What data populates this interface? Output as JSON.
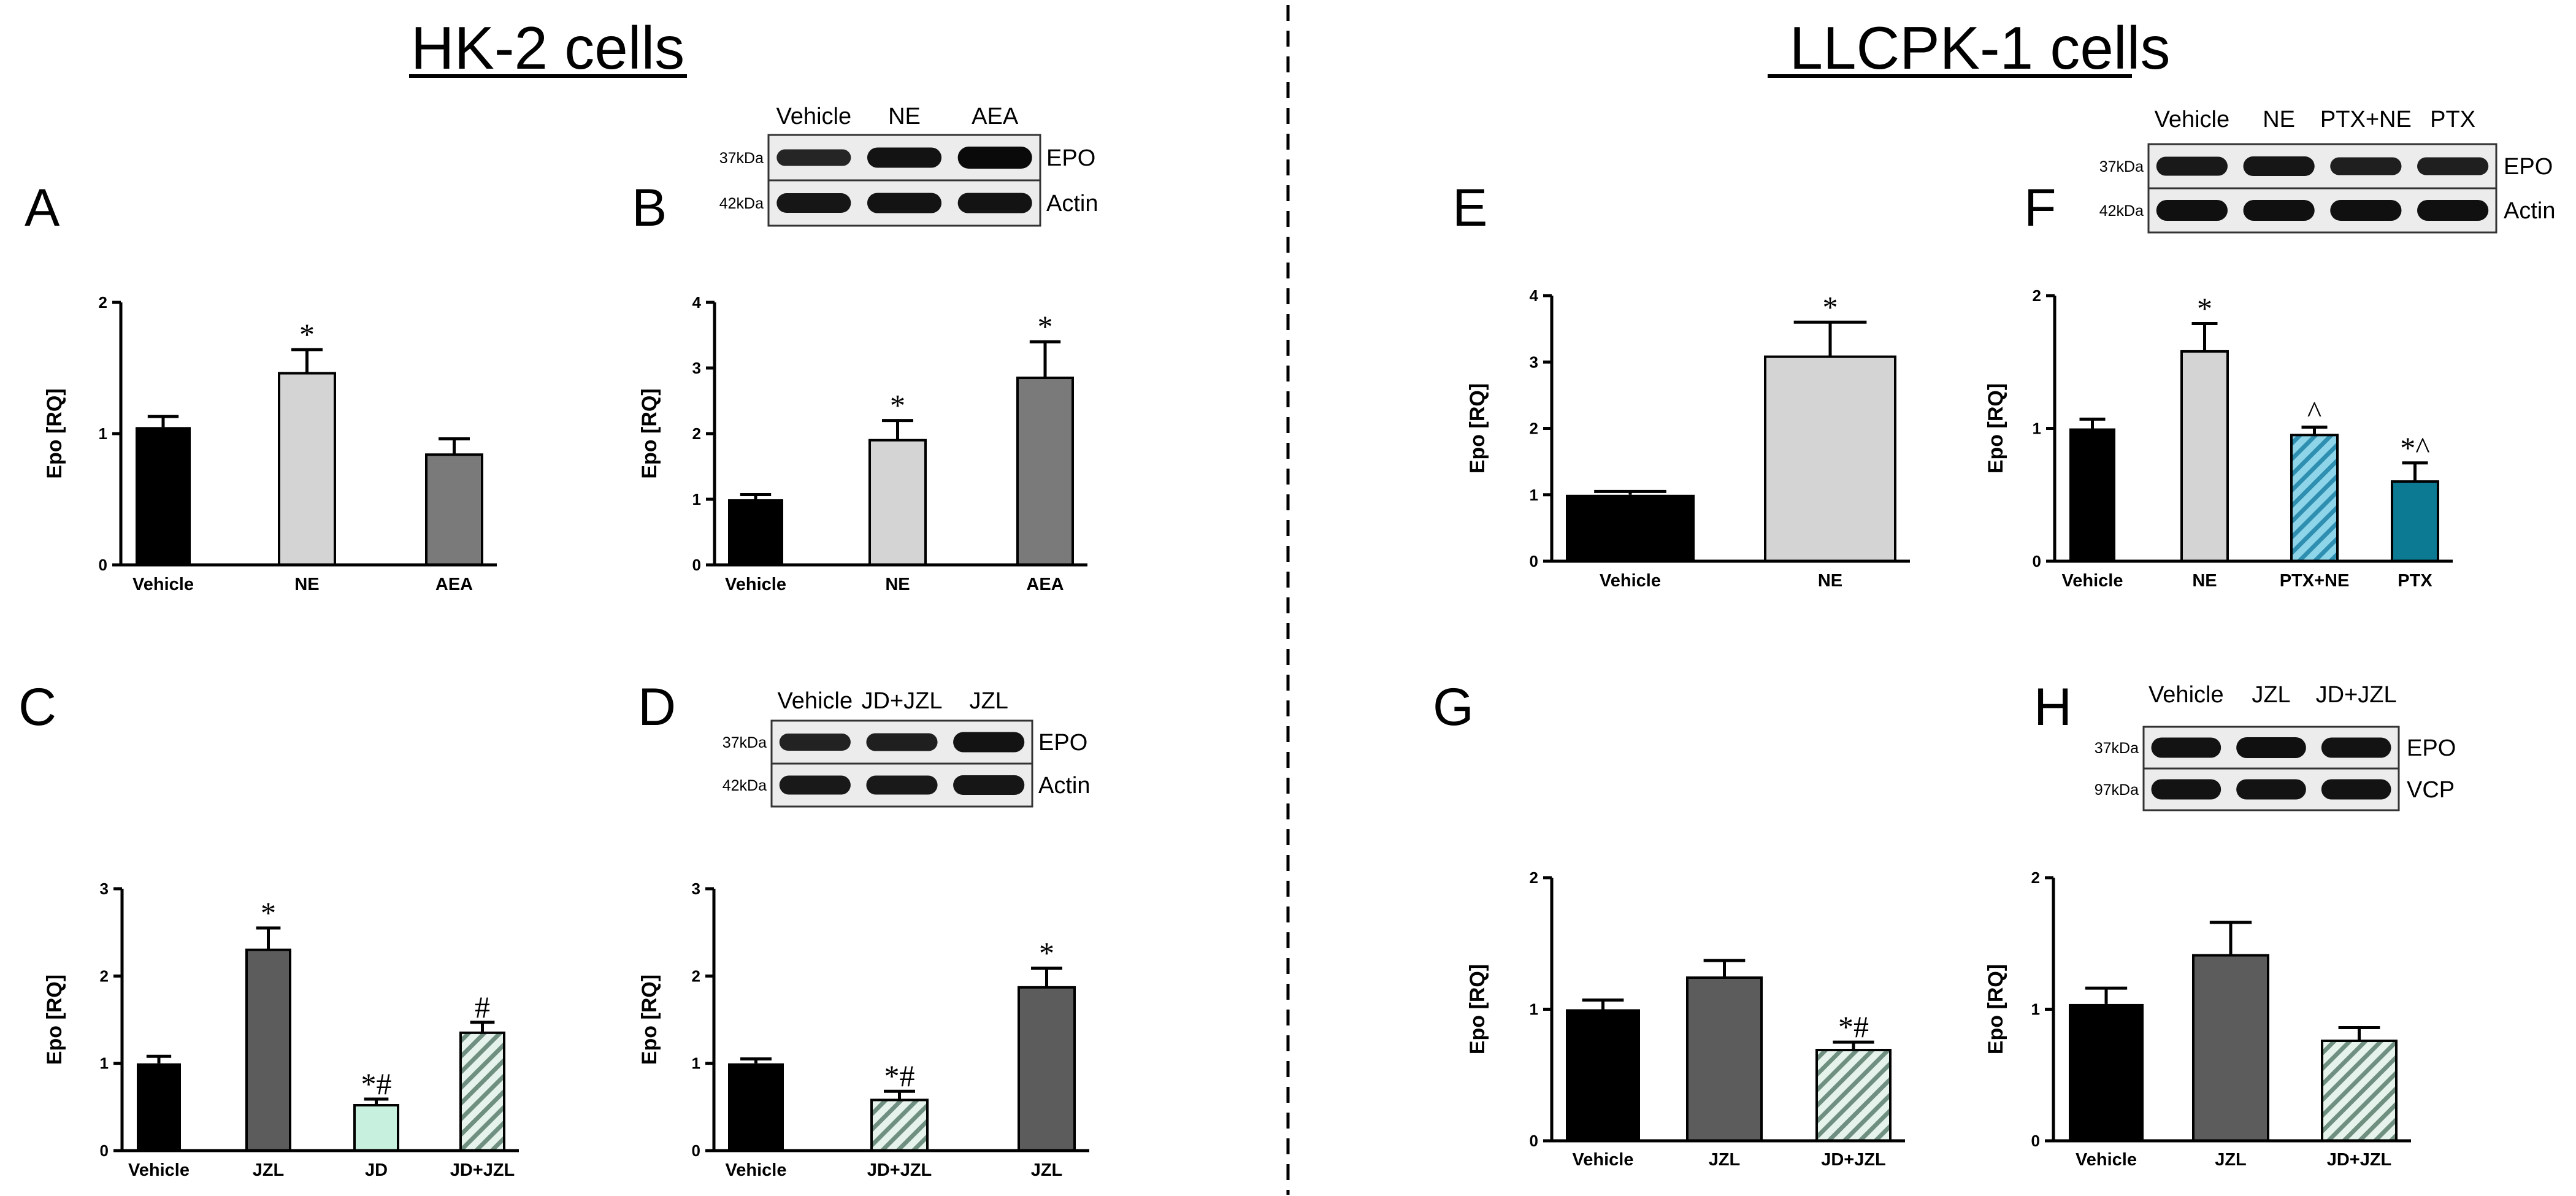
{
  "headings": {
    "left": "HK-2 cells",
    "right": "LLCPK-1 cells"
  },
  "colors": {
    "black": "#000000",
    "light_gray": "#d4d4d4",
    "mid_gray": "#7a7a7a",
    "dark_gray": "#5c5c5c",
    "mint": "#c8f0de",
    "teal": "#0d7a94",
    "hatch_teal_bg": "#8fd5ea",
    "hatch_teal_line": "#2e8fb0",
    "hatch_gray_bg": "#e6f2ec",
    "hatch_gray_line": "#6f8f80"
  },
  "blots": [
    {
      "panel": "B",
      "lanes": [
        "Vehicle",
        "NE",
        "AEA"
      ],
      "rows": [
        {
          "mw": "37kDa",
          "protein": "EPO",
          "intensity": [
            0.55,
            0.85,
            1.0
          ]
        },
        {
          "mw": "42kDa",
          "protein": "Actin",
          "intensity": [
            0.8,
            0.85,
            0.85
          ]
        }
      ]
    },
    {
      "panel": "D",
      "lanes": [
        "Vehicle",
        "JD+JZL",
        "JZL"
      ],
      "rows": [
        {
          "mw": "37kDa",
          "protein": "EPO",
          "intensity": [
            0.6,
            0.65,
            0.85
          ]
        },
        {
          "mw": "42kDa",
          "protein": "Actin",
          "intensity": [
            0.75,
            0.75,
            0.8
          ]
        }
      ]
    },
    {
      "panel": "F",
      "lanes": [
        "Vehicle",
        "NE",
        "PTX+NE",
        "PTX"
      ],
      "rows": [
        {
          "mw": "37kDa",
          "protein": "EPO",
          "intensity": [
            0.75,
            0.8,
            0.65,
            0.65
          ]
        },
        {
          "mw": "42kDa",
          "protein": "Actin",
          "intensity": [
            0.9,
            0.9,
            0.9,
            0.9
          ]
        }
      ]
    },
    {
      "panel": "H",
      "lanes": [
        "Vehicle",
        "JZL",
        "JD+JZL"
      ],
      "rows": [
        {
          "mw": "37kDa",
          "protein": "EPO",
          "intensity": [
            0.85,
            0.9,
            0.85
          ]
        },
        {
          "mw": "97kDa",
          "protein": "VCP",
          "intensity": [
            0.85,
            0.85,
            0.85
          ]
        }
      ]
    }
  ],
  "chart_data": [
    {
      "panel": "A",
      "type": "bar",
      "ylabel": "Epo [RQ]",
      "ylim": [
        0,
        2
      ],
      "yticks": [
        0,
        1,
        2
      ],
      "categories": [
        "Vehicle",
        "NE",
        "AEA"
      ],
      "values": [
        1.05,
        1.46,
        0.84
      ],
      "errors": [
        0.08,
        0.18,
        0.12
      ],
      "fills": [
        "black",
        "light_gray",
        "mid_gray"
      ],
      "annotations": [
        "",
        "*",
        ""
      ]
    },
    {
      "panel": "B",
      "type": "bar",
      "ylabel": "Epo [RQ]",
      "ylim": [
        0,
        4
      ],
      "yticks": [
        0,
        1,
        2,
        3,
        4
      ],
      "categories": [
        "Vehicle",
        "NE",
        "AEA"
      ],
      "values": [
        1.0,
        1.9,
        2.85
      ],
      "errors": [
        0.07,
        0.3,
        0.55
      ],
      "fills": [
        "black",
        "light_gray",
        "mid_gray"
      ],
      "annotations": [
        "",
        "*",
        "*"
      ]
    },
    {
      "panel": "C",
      "type": "bar",
      "ylabel": "Epo [RQ]",
      "ylim": [
        0,
        3
      ],
      "yticks": [
        0,
        1,
        2,
        3
      ],
      "categories": [
        "Vehicle",
        "JZL",
        "JD",
        "JD+JZL"
      ],
      "values": [
        1.0,
        2.3,
        0.52,
        1.35
      ],
      "errors": [
        0.08,
        0.25,
        0.07,
        0.12
      ],
      "fills": [
        "black",
        "dark_gray",
        "mint",
        "hatch_gray"
      ],
      "annotations": [
        "",
        "*",
        "*#",
        "#"
      ]
    },
    {
      "panel": "D",
      "type": "bar",
      "ylabel": "Epo [RQ]",
      "ylim": [
        0,
        3
      ],
      "yticks": [
        0,
        1,
        2,
        3
      ],
      "categories": [
        "Vehicle",
        "JD+JZL",
        "JZL"
      ],
      "values": [
        1.0,
        0.58,
        1.87
      ],
      "errors": [
        0.05,
        0.1,
        0.22
      ],
      "fills": [
        "black",
        "hatch_gray",
        "dark_gray"
      ],
      "annotations": [
        "",
        "*#",
        "*"
      ]
    },
    {
      "panel": "E",
      "type": "bar",
      "ylabel": "Epo [RQ]",
      "ylim": [
        0,
        4
      ],
      "yticks": [
        0,
        1,
        2,
        3,
        4
      ],
      "categories": [
        "Vehicle",
        "NE"
      ],
      "values": [
        1.0,
        3.08
      ],
      "errors": [
        0.05,
        0.52
      ],
      "fills": [
        "black",
        "light_gray"
      ],
      "annotations": [
        "",
        "*"
      ]
    },
    {
      "panel": "F",
      "type": "bar",
      "ylabel": "Epo [RQ]",
      "ylim": [
        0,
        2
      ],
      "yticks": [
        0,
        1,
        2
      ],
      "categories": [
        "Vehicle",
        "NE",
        "PTX+NE",
        "PTX"
      ],
      "values": [
        1.0,
        1.58,
        0.95,
        0.6
      ],
      "errors": [
        0.07,
        0.21,
        0.06,
        0.14
      ],
      "fills": [
        "black",
        "light_gray",
        "hatch_teal",
        "teal"
      ],
      "annotations": [
        "",
        "*",
        "^",
        "*^"
      ]
    },
    {
      "panel": "G",
      "type": "bar",
      "ylabel": "Epo [RQ]",
      "ylim": [
        0,
        2
      ],
      "yticks": [
        0,
        1,
        2
      ],
      "categories": [
        "Vehicle",
        "JZL",
        "JD+JZL"
      ],
      "values": [
        1.0,
        1.24,
        0.69
      ],
      "errors": [
        0.07,
        0.13,
        0.06
      ],
      "fills": [
        "black",
        "dark_gray",
        "hatch_gray"
      ],
      "annotations": [
        "",
        "",
        "*#"
      ]
    },
    {
      "panel": "H",
      "type": "bar",
      "ylabel": "Epo [RQ]",
      "ylim": [
        0,
        2
      ],
      "yticks": [
        0,
        1,
        2
      ],
      "categories": [
        "Vehicle",
        "JZL",
        "JD+JZL"
      ],
      "values": [
        1.04,
        1.41,
        0.76
      ],
      "errors": [
        0.12,
        0.25,
        0.1
      ],
      "fills": [
        "black",
        "dark_gray",
        "hatch_gray"
      ],
      "annotations": [
        "",
        "",
        ""
      ]
    }
  ]
}
